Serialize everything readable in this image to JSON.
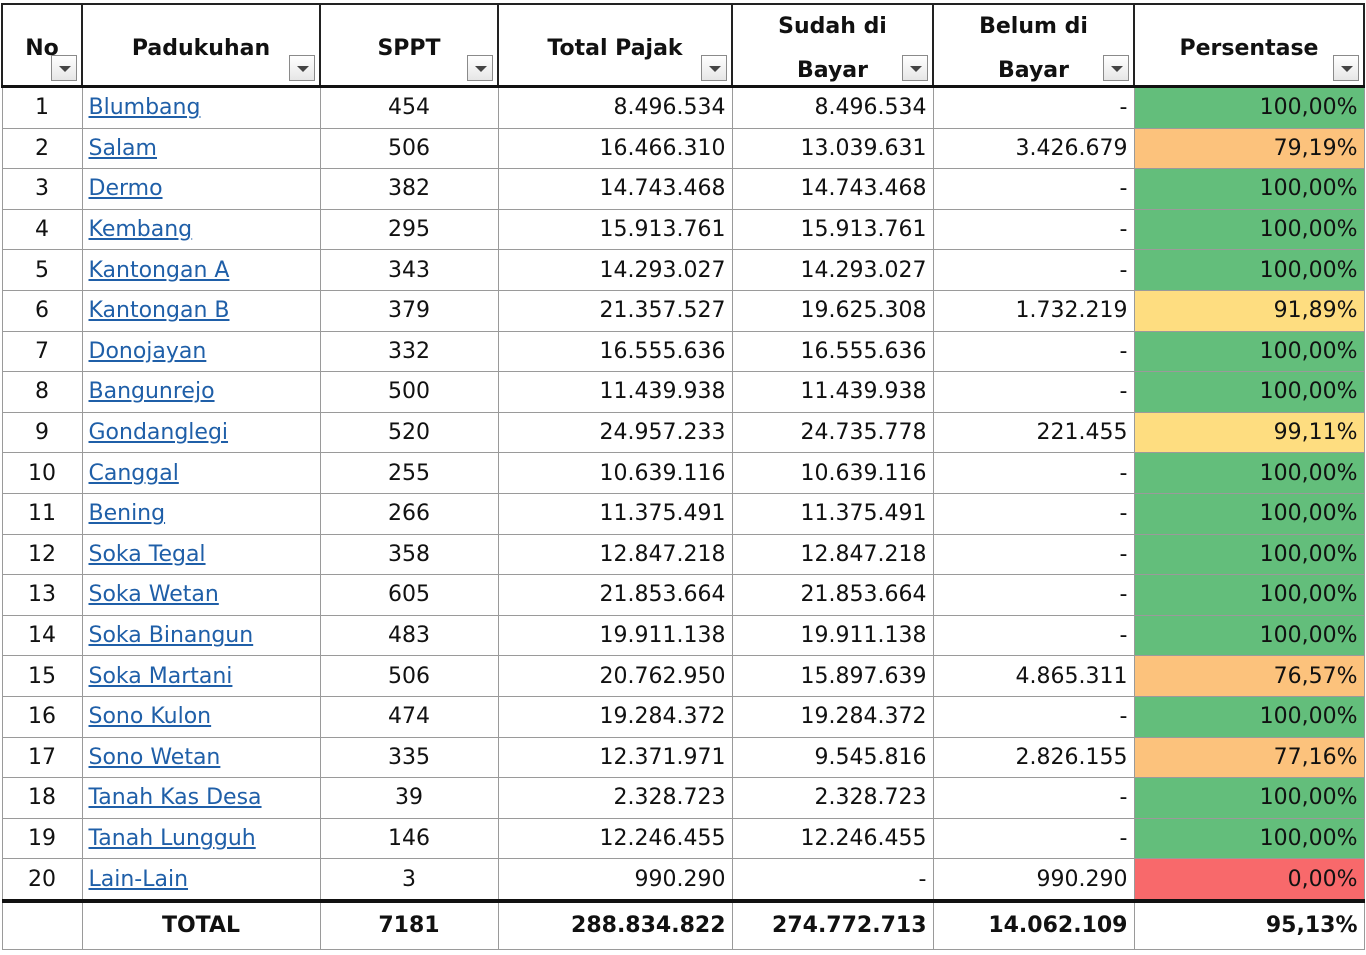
{
  "header": {
    "no": "No",
    "padukuhan": "Padukuhan",
    "sppt": "SPPT",
    "total_pajak": "Total Pajak",
    "sudah_line1": "Sudah di",
    "sudah_line2": "Bayar",
    "belum_line1": "Belum di",
    "belum_line2": "Bayar",
    "persentase": "Persentase"
  },
  "status_colors": {
    "full": "#63be7b",
    "mid": "#fedd80",
    "low": "#fcc27c",
    "zero": "#f8696b"
  },
  "rows": [
    {
      "no": "1",
      "name": "Blumbang",
      "sppt": "454",
      "total": "8.496.534",
      "sudah": "8.496.534",
      "belum": "-",
      "pct": "100,00%",
      "color": "green"
    },
    {
      "no": "2",
      "name": "Salam",
      "sppt": "506",
      "total": "16.466.310",
      "sudah": "13.039.631",
      "belum": "3.426.679",
      "pct": "79,19%",
      "color": "orange"
    },
    {
      "no": "3",
      "name": "Dermo",
      "sppt": "382",
      "total": "14.743.468",
      "sudah": "14.743.468",
      "belum": "-",
      "pct": "100,00%",
      "color": "green"
    },
    {
      "no": "4",
      "name": "Kembang",
      "sppt": "295",
      "total": "15.913.761",
      "sudah": "15.913.761",
      "belum": "-",
      "pct": "100,00%",
      "color": "green"
    },
    {
      "no": "5",
      "name": "Kantongan A",
      "sppt": "343",
      "total": "14.293.027",
      "sudah": "14.293.027",
      "belum": "-",
      "pct": "100,00%",
      "color": "green"
    },
    {
      "no": "6",
      "name": "Kantongan B",
      "sppt": "379",
      "total": "21.357.527",
      "sudah": "19.625.308",
      "belum": "1.732.219",
      "pct": "91,89%",
      "color": "yellow"
    },
    {
      "no": "7",
      "name": "Donojayan",
      "sppt": "332",
      "total": "16.555.636",
      "sudah": "16.555.636",
      "belum": "-",
      "pct": "100,00%",
      "color": "green"
    },
    {
      "no": "8",
      "name": "Bangunrejo",
      "sppt": "500",
      "total": "11.439.938",
      "sudah": "11.439.938",
      "belum": "-",
      "pct": "100,00%",
      "color": "green"
    },
    {
      "no": "9",
      "name": "Gondanglegi",
      "sppt": "520",
      "total": "24.957.233",
      "sudah": "24.735.778",
      "belum": "221.455",
      "pct": "99,11%",
      "color": "yellow"
    },
    {
      "no": "10",
      "name": "Canggal",
      "sppt": "255",
      "total": "10.639.116",
      "sudah": "10.639.116",
      "belum": "-",
      "pct": "100,00%",
      "color": "green"
    },
    {
      "no": "11",
      "name": "Bening",
      "sppt": "266",
      "total": "11.375.491",
      "sudah": "11.375.491",
      "belum": "-",
      "pct": "100,00%",
      "color": "green"
    },
    {
      "no": "12",
      "name": "Soka Tegal",
      "sppt": "358",
      "total": "12.847.218",
      "sudah": "12.847.218",
      "belum": "-",
      "pct": "100,00%",
      "color": "green"
    },
    {
      "no": "13",
      "name": "Soka Wetan",
      "sppt": "605",
      "total": "21.853.664",
      "sudah": "21.853.664",
      "belum": "-",
      "pct": "100,00%",
      "color": "green"
    },
    {
      "no": "14",
      "name": "Soka Binangun",
      "sppt": "483",
      "total": "19.911.138",
      "sudah": "19.911.138",
      "belum": "-",
      "pct": "100,00%",
      "color": "green"
    },
    {
      "no": "15",
      "name": "Soka Martani",
      "sppt": "506",
      "total": "20.762.950",
      "sudah": "15.897.639",
      "belum": "4.865.311",
      "pct": "76,57%",
      "color": "orange"
    },
    {
      "no": "16",
      "name": "Sono Kulon",
      "sppt": "474",
      "total": "19.284.372",
      "sudah": "19.284.372",
      "belum": "-",
      "pct": "100,00%",
      "color": "green"
    },
    {
      "no": "17",
      "name": "Sono Wetan",
      "sppt": "335",
      "total": "12.371.971",
      "sudah": "9.545.816",
      "belum": "2.826.155",
      "pct": "77,16%",
      "color": "orange"
    },
    {
      "no": "18",
      "name": "Tanah Kas Desa",
      "sppt": "39",
      "total": "2.328.723",
      "sudah": "2.328.723",
      "belum": "-",
      "pct": "100,00%",
      "color": "green"
    },
    {
      "no": "19",
      "name": "Tanah Lungguh",
      "sppt": "146",
      "total": "12.246.455",
      "sudah": "12.246.455",
      "belum": "-",
      "pct": "100,00%",
      "color": "green"
    },
    {
      "no": "20",
      "name": "Lain-Lain",
      "sppt": "3",
      "total": "990.290",
      "sudah": "-",
      "belum": "990.290",
      "pct": "0,00%",
      "color": "red"
    }
  ],
  "total": {
    "label": "TOTAL",
    "sppt": "7181",
    "total": "288.834.822",
    "sudah": "274.772.713",
    "belum": "14.062.109",
    "pct": "95,13%"
  }
}
